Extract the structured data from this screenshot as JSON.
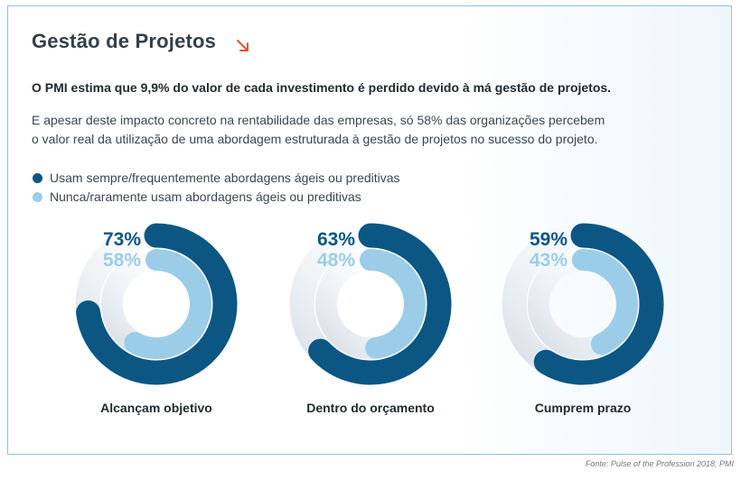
{
  "header": {
    "title": "Gestão de Projetos",
    "lead": "O PMI estima que 9,9% do valor de cada investimento é perdido devido à má gestão de projetos.",
    "body_lines": [
      "E apesar deste impacto concreto na rentabilidade das empresas, só 58% das organizações percebem",
      "o valor real da utilização de uma abordagem estruturada à gestão de projetos no sucesso do projeto."
    ]
  },
  "colors": {
    "dark": "#0c5684",
    "light": "#9bcde8",
    "accent": "#e8502a"
  },
  "legend": [
    {
      "label": "Usam sempre/frequentemente abordagens ágeis ou preditivas",
      "color": "#0c5684"
    },
    {
      "label": "Nunca/raramente usam abordagens ágeis ou preditivas",
      "color": "#9bcde8"
    }
  ],
  "chart_data": {
    "type": "radial-bar",
    "unit": "%",
    "series": [
      {
        "name": "Usam sempre/frequentemente abordagens ágeis ou preditivas",
        "values": [
          73,
          63,
          59
        ],
        "labels": [
          "73%",
          "63%",
          "59%"
        ]
      },
      {
        "name": "Nunca/raramente usam abordagens ágeis ou preditivas",
        "values": [
          58,
          48,
          43
        ],
        "labels": [
          "58%",
          "48%",
          "43%"
        ]
      }
    ],
    "categories": [
      "Alcançam objetivo",
      "Dentro do orçamento",
      "Cumprem prazo"
    ]
  },
  "source": "Fonte: Pulse of the Profession 2018, PMI"
}
